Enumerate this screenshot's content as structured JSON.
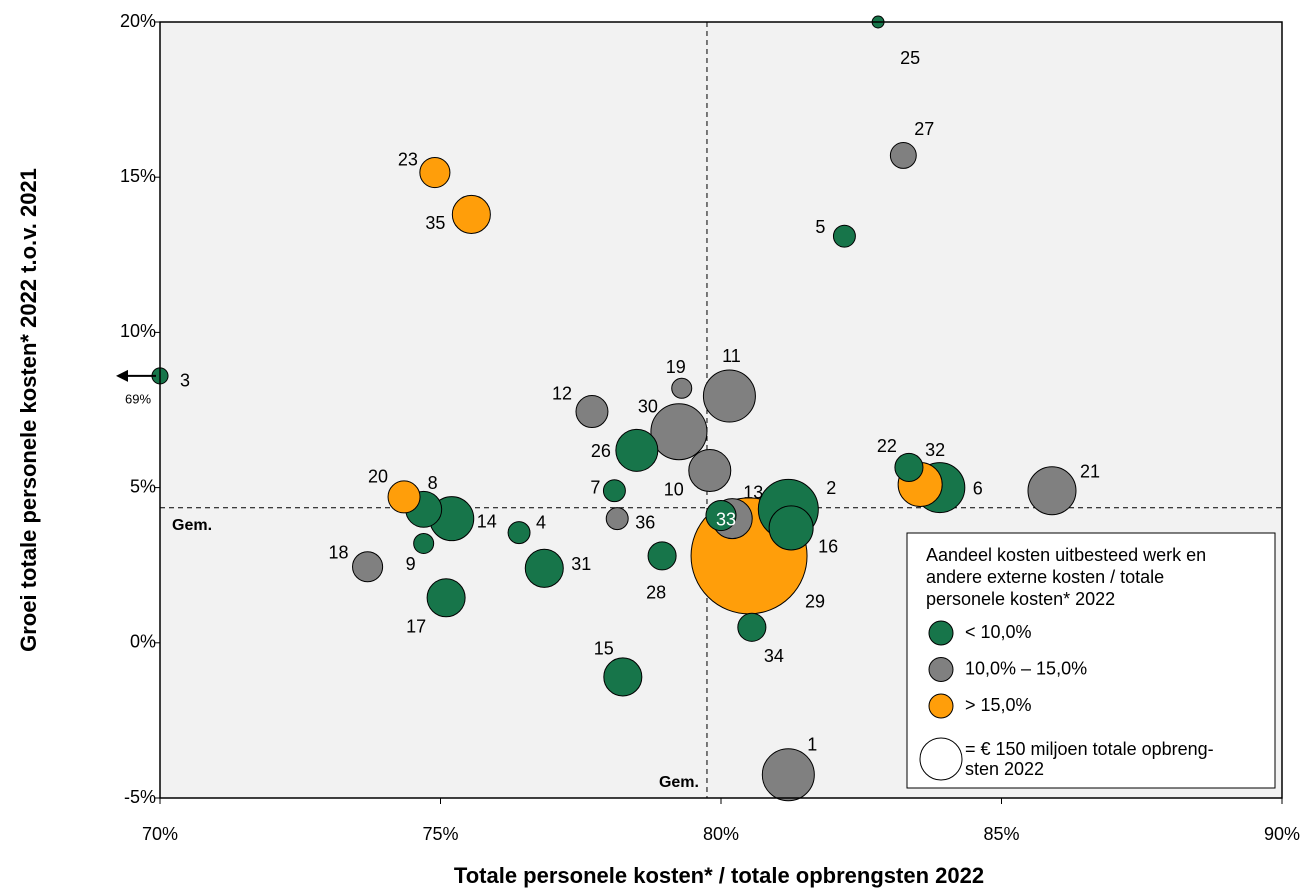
{
  "chart_data": {
    "type": "bubble",
    "x_label": "Totale personele kosten* / totale opbrengsten 2022",
    "y_label": "Groei totale personele kosten* 2022 t.o.v. 2021",
    "xlim": [
      70,
      90
    ],
    "xticks": [
      {
        "value": 70,
        "label": "70%"
      },
      {
        "value": 75,
        "label": "75%"
      },
      {
        "value": 80,
        "label": "80%"
      },
      {
        "value": 85,
        "label": "85%"
      },
      {
        "value": 90,
        "label": "90%"
      }
    ],
    "ylim": [
      -5,
      20
    ],
    "yticks": [
      {
        "value": -5,
        "label": "-5%"
      },
      {
        "value": 0,
        "label": "0%"
      },
      {
        "value": 5,
        "label": "5%"
      },
      {
        "value": 10,
        "label": "10%"
      },
      {
        "value": 15,
        "label": "15%"
      },
      {
        "value": 20,
        "label": "20%"
      }
    ],
    "averages": {
      "x": 79.75,
      "y": 4.35,
      "label": "Gem."
    },
    "off_scale_annotation": "69%",
    "legend_title_lines": [
      "Aandeel kosten uitbesteed werk en",
      "andere externe kosten / totale",
      "personele kosten* 2022"
    ],
    "size_legend": {
      "value": 150,
      "label_lines": [
        "= € 150 miljoen totale opbreng-",
        "sten 2022"
      ]
    },
    "series": [
      {
        "name": "< 10,0%",
        "color": "#17754a",
        "labels": [
          "25",
          "5",
          "3",
          "26",
          "22",
          "6",
          "7",
          "8",
          "14",
          "2",
          "33",
          "4",
          "16",
          "9",
          "28",
          "31",
          "17",
          "34",
          "15"
        ],
        "x": [
          82.8,
          82.2,
          70,
          78.5,
          83.35,
          83.9,
          78.1,
          74.7,
          75.2,
          81.2,
          80.0,
          76.4,
          81.25,
          74.7,
          78.95,
          76.85,
          75.1,
          80.55,
          78.25
        ],
        "y": [
          20,
          13.1,
          8.6,
          6.2,
          5.65,
          5.0,
          4.9,
          4.3,
          4.0,
          4.3,
          4.1,
          3.55,
          3.7,
          3.2,
          2.8,
          2.4,
          1.45,
          0.5,
          -1.1
        ],
        "size": [
          12,
          41,
          22,
          150,
          67,
          213,
          41,
          110,
          165,
          306,
          77,
          41,
          165,
          34,
          67,
          123,
          123,
          67,
          123
        ]
      },
      {
        "name": "10,0% – 15,0%",
        "color": "#808080",
        "labels": [
          "27",
          "19",
          "11",
          "12",
          "30",
          "10",
          "21",
          "13",
          "36",
          "18",
          "1"
        ],
        "x": [
          83.25,
          79.3,
          80.15,
          77.7,
          79.25,
          79.8,
          85.9,
          80.2,
          78.15,
          73.7,
          81.2
        ],
        "y": [
          15.7,
          8.2,
          7.95,
          7.45,
          6.8,
          5.55,
          4.9,
          4.0,
          4.0,
          2.45,
          -4.25
        ],
        "size": [
          57,
          34,
          230,
          87,
          267,
          150,
          196,
          136,
          41,
          77,
          230
        ]
      },
      {
        "name": "> 15,0%",
        "color": "#ff9e0a",
        "labels": [
          "23",
          "35",
          "20",
          "32",
          "29"
        ],
        "x": [
          74.9,
          75.55,
          74.35,
          83.55,
          80.5
        ],
        "y": [
          15.15,
          13.8,
          4.7,
          5.1,
          2.8
        ],
        "size": [
          77,
          123,
          87,
          165,
          1144
        ]
      }
    ]
  }
}
